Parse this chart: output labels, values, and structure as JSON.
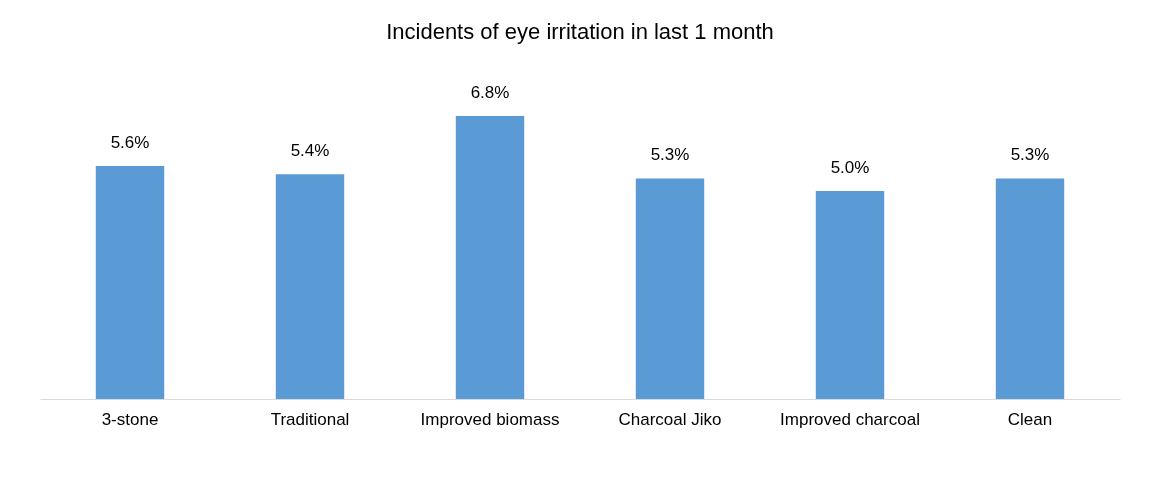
{
  "chart_data": {
    "type": "bar",
    "title": "Incidents of eye irritation in last 1 month",
    "categories": [
      "3-stone",
      "Traditional",
      "Improved biomass",
      "Charcoal Jiko",
      "Improved charcoal",
      "Clean"
    ],
    "values": [
      5.6,
      5.4,
      6.8,
      5.3,
      5.0,
      5.3
    ],
    "value_labels": [
      "5.6%",
      "5.4%",
      "6.8%",
      "5.3%",
      "5.0%",
      "5.3%"
    ],
    "color": "#5b9bd5",
    "grid": false
  }
}
